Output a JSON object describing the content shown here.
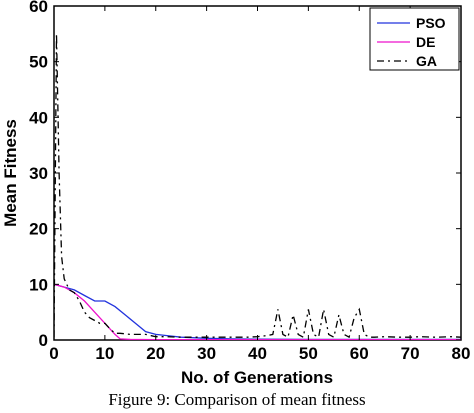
{
  "caption": "Figure 9:  Comparison of mean fitness",
  "chart_data": {
    "type": "line",
    "xlabel": "No. of Generations",
    "ylabel": "Mean Fitness",
    "xlim": [
      0,
      80
    ],
    "ylim": [
      0,
      60
    ],
    "xticks": [
      0,
      10,
      20,
      30,
      40,
      50,
      60,
      70,
      80
    ],
    "yticks": [
      0,
      10,
      20,
      30,
      40,
      50,
      60
    ],
    "grid": false,
    "legend_position": "top-right",
    "series": [
      {
        "name": "PSO",
        "color": "#2233dd",
        "style": "solid",
        "x": [
          0,
          2,
          4,
          6,
          8,
          10,
          12,
          14,
          16,
          18,
          20,
          22,
          25,
          30,
          35,
          40,
          50,
          60,
          70,
          80
        ],
        "y": [
          10,
          9.5,
          9,
          8,
          7,
          7,
          6,
          4.5,
          3,
          1.5,
          1,
          0.8,
          0.5,
          0.3,
          0.2,
          0.15,
          0.1,
          0.1,
          0.1,
          0.1
        ]
      },
      {
        "name": "DE",
        "color": "#ee11cc",
        "style": "solid",
        "x": [
          0,
          2,
          4,
          6,
          8,
          10,
          12,
          13,
          15,
          20,
          30,
          40,
          50,
          60,
          70,
          80
        ],
        "y": [
          10,
          9.5,
          8.5,
          7,
          5,
          3,
          1,
          0.2,
          0.1,
          0.05,
          0.05,
          0.05,
          0.05,
          0.05,
          0.05,
          0.05
        ]
      },
      {
        "name": "GA",
        "color": "#000000",
        "style": "dashdot",
        "x": [
          0,
          0.5,
          1,
          1.5,
          2,
          3,
          4,
          5,
          6,
          7,
          8,
          9,
          10,
          11,
          12,
          13,
          15,
          18,
          20,
          22,
          25,
          30,
          35,
          38,
          40,
          42,
          43,
          44,
          45,
          46,
          47,
          48,
          49,
          50,
          51,
          52,
          53,
          54,
          55,
          56,
          57,
          58,
          59,
          60,
          61,
          62,
          63,
          65,
          68,
          70,
          72,
          75,
          78,
          80
        ],
        "y": [
          0.5,
          55,
          30,
          15,
          11,
          9,
          8.5,
          7,
          5,
          4,
          3.5,
          3,
          3,
          2,
          1.2,
          1.2,
          1,
          1,
          0.6,
          0.6,
          0.5,
          0.5,
          0.5,
          0.5,
          0.6,
          0.8,
          1,
          5.5,
          1,
          0.5,
          4.5,
          1,
          0.5,
          5.5,
          1,
          0.5,
          5.5,
          1,
          0.5,
          4.5,
          1,
          0.5,
          4,
          5.5,
          1,
          0.5,
          0.5,
          0.6,
          0.5,
          0.5,
          0.6,
          0.5,
          0.6,
          0.5
        ]
      }
    ]
  }
}
